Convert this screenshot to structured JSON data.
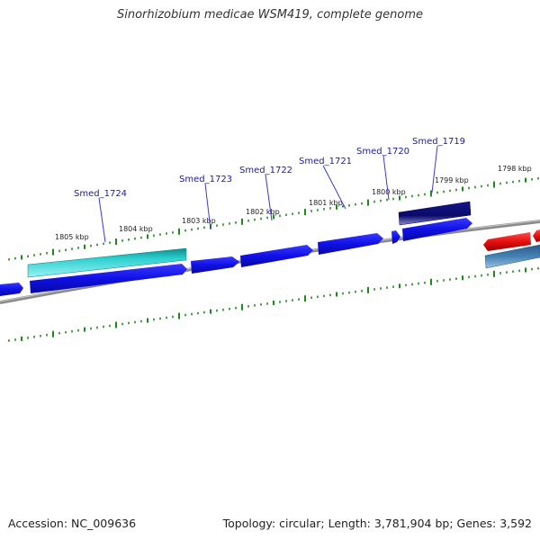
{
  "title": "Sinorhizobium medicae WSM419, complete genome",
  "footer": {
    "accession": "Accession: NC_009636",
    "summary": "Topology: circular; Length: 3,781,904 bp; Genes: 3,592"
  },
  "ruler_labels": [
    "1805 kbp",
    "1804 kbp",
    "1803 kbp",
    "1802 kbp",
    "1801 kbp",
    "1800 kbp",
    "1799 kbp",
    "1798 kbp"
  ],
  "gene_labels": [
    "Smed_1724",
    "Smed_1723",
    "Smed_1722",
    "Smed_1721",
    "Smed_1720",
    "Smed_1719"
  ],
  "colors": {
    "backbone": "#8a8a8a",
    "ticks": "#1e8a1e",
    "cds": "#1010e6",
    "rna": "#2ccfcf",
    "dark_cds": "#0a0a7a",
    "red_cds": "#e61010",
    "steel_cds": "#4682b4",
    "label": "#1a1aa8"
  }
}
